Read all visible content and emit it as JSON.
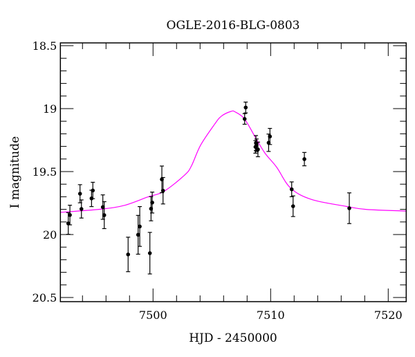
{
  "chart_data": {
    "type": "scatter",
    "title": "OGLE-2016-BLG-0803",
    "xlabel": "HJD - 2450000",
    "ylabel": "I magnitude",
    "xlim": [
      7492.12,
      7521.53
    ],
    "ylim": [
      20.533,
      18.478
    ],
    "y_inverted": true,
    "xticks": [
      7500,
      7510,
      7520
    ],
    "xtick_labels": [
      "7500",
      "7510",
      "7520"
    ],
    "x_minor_step": 2,
    "yticks": [
      18.5,
      19,
      19.5,
      20,
      20.5
    ],
    "ytick_labels": [
      "18.5",
      "19",
      "19.5",
      "20",
      "20.5"
    ],
    "y_minor_step": 0.1,
    "grid": false,
    "colors": {
      "data": "#000000",
      "model": "#ff00ff"
    },
    "series": [
      {
        "name": "data",
        "type": "scatter-errorbar",
        "points": [
          {
            "x": 7492.79,
            "y": 19.912,
            "err": 0.086
          },
          {
            "x": 7492.93,
            "y": 19.845,
            "err": 0.078
          },
          {
            "x": 7493.79,
            "y": 19.676,
            "err": 0.072
          },
          {
            "x": 7493.91,
            "y": 19.797,
            "err": 0.072
          },
          {
            "x": 7494.77,
            "y": 19.713,
            "err": 0.065
          },
          {
            "x": 7494.88,
            "y": 19.65,
            "err": 0.065
          },
          {
            "x": 7495.73,
            "y": 19.782,
            "err": 0.097
          },
          {
            "x": 7495.85,
            "y": 19.846,
            "err": 0.107
          },
          {
            "x": 7497.88,
            "y": 20.158,
            "err": 0.137
          },
          {
            "x": 7498.73,
            "y": 20.002,
            "err": 0.154
          },
          {
            "x": 7498.87,
            "y": 19.936,
            "err": 0.158
          },
          {
            "x": 7499.73,
            "y": 20.148,
            "err": 0.165
          },
          {
            "x": 7499.83,
            "y": 19.795,
            "err": 0.096
          },
          {
            "x": 7499.93,
            "y": 19.746,
            "err": 0.083
          },
          {
            "x": 7500.75,
            "y": 19.562,
            "err": 0.106
          },
          {
            "x": 7500.85,
            "y": 19.652,
            "err": 0.105
          },
          {
            "x": 7507.79,
            "y": 19.082,
            "err": 0.042
          },
          {
            "x": 7507.88,
            "y": 18.991,
            "err": 0.043
          },
          {
            "x": 7508.71,
            "y": 19.304,
            "err": 0.05
          },
          {
            "x": 7508.75,
            "y": 19.273,
            "err": 0.059
          },
          {
            "x": 7508.8,
            "y": 19.291,
            "err": 0.05
          },
          {
            "x": 7508.92,
            "y": 19.324,
            "err": 0.058
          },
          {
            "x": 7509.83,
            "y": 19.271,
            "err": 0.069
          },
          {
            "x": 7509.94,
            "y": 19.221,
            "err": 0.064
          },
          {
            "x": 7511.79,
            "y": 19.641,
            "err": 0.059
          },
          {
            "x": 7511.91,
            "y": 19.775,
            "err": 0.082
          },
          {
            "x": 7512.87,
            "y": 19.401,
            "err": 0.053
          },
          {
            "x": 7516.69,
            "y": 19.791,
            "err": 0.122
          }
        ]
      },
      {
        "name": "model",
        "type": "line",
        "x": [
          7492.12,
          7495.61,
          7497.57,
          7499.51,
          7500.91,
          7502.67,
          7503.26,
          7504.04,
          7505.22,
          7505.81,
          7506.63,
          7506.98,
          7507.77,
          7508.75,
          7509.53,
          7510.51,
          7511.69,
          7513.46,
          7516.4,
          7518.16,
          7521.53
        ],
        "y": [
          19.824,
          19.798,
          19.768,
          19.703,
          19.658,
          19.529,
          19.456,
          19.291,
          19.126,
          19.06,
          19.022,
          19.026,
          19.081,
          19.236,
          19.355,
          19.465,
          19.63,
          19.721,
          19.776,
          19.801,
          19.813
        ]
      }
    ]
  }
}
